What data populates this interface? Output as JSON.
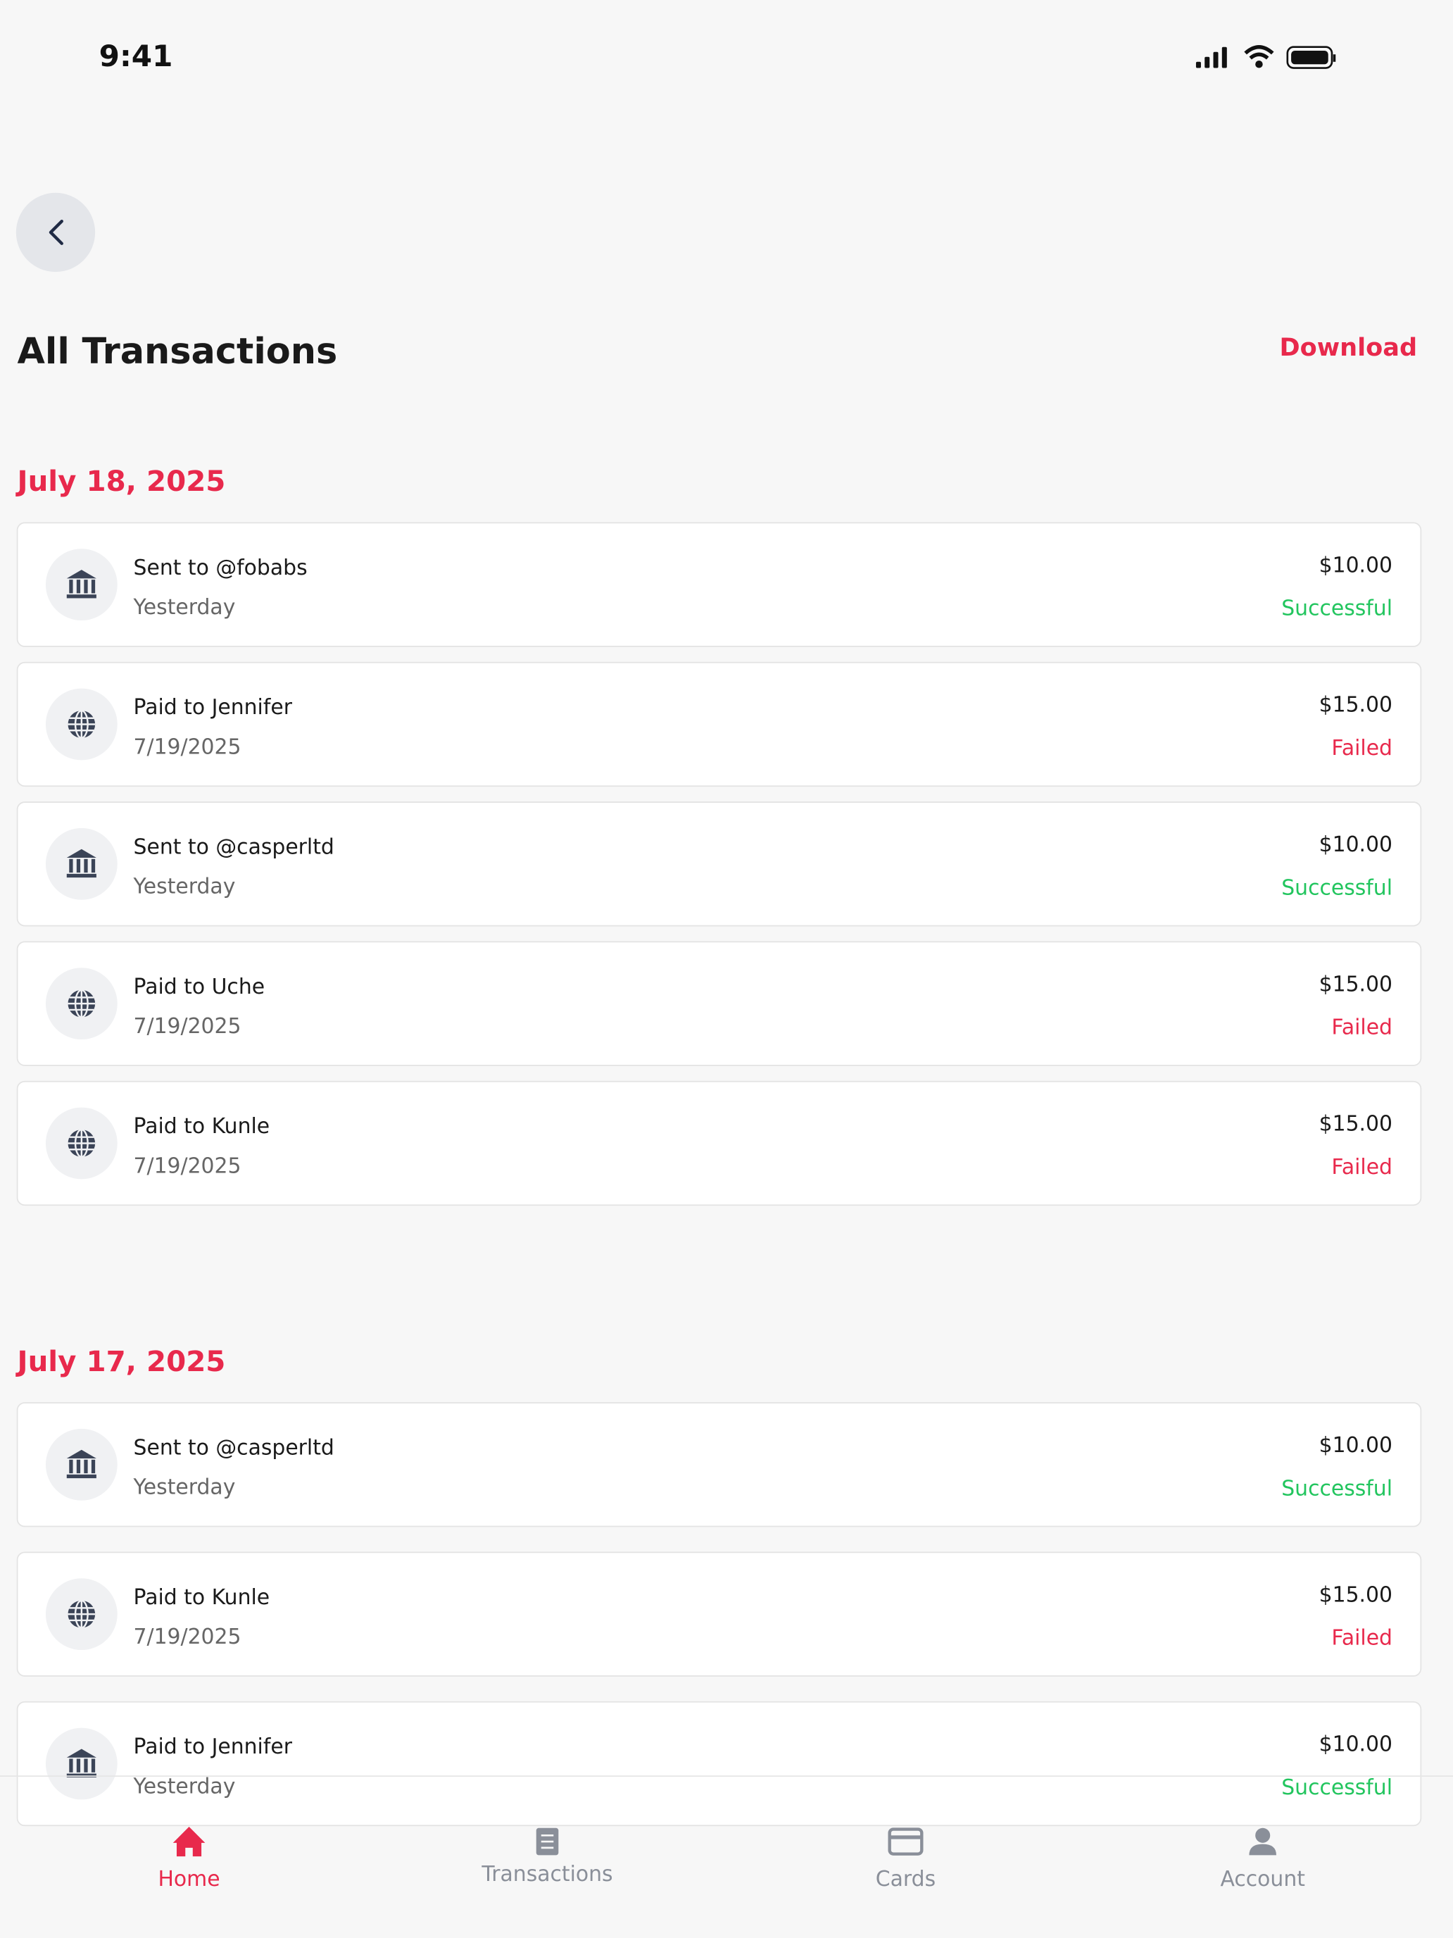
{
  "status_bar": {
    "time": "9:41"
  },
  "header": {
    "title": "All Transactions",
    "action": "Download"
  },
  "sections": [
    {
      "date": "July 18, 2025",
      "transactions": [
        {
          "title": "Sent to @fobabs",
          "subtitle": "Yesterday",
          "amount": "$10.00",
          "status": "Successful",
          "color": "#22c55e",
          "icon": "bank"
        },
        {
          "title": "Paid to Jennifer",
          "subtitle": "7/19/2025",
          "amount": "$15.00",
          "status": "Failed",
          "color": "#e8294c",
          "icon": "globe"
        },
        {
          "title": "Sent to @casperltd",
          "subtitle": "Yesterday",
          "amount": "$10.00",
          "status": "Successful",
          "color": "#22c55e",
          "icon": "bank"
        },
        {
          "title": "Paid to Uche",
          "subtitle": "7/19/2025",
          "amount": "$15.00",
          "status": "Failed",
          "color": "#e8294c",
          "icon": "globe"
        },
        {
          "title": "Paid to Kunle",
          "subtitle": "7/19/2025",
          "amount": "$15.00",
          "status": "Failed",
          "color": "#e8294c",
          "icon": "globe"
        }
      ]
    },
    {
      "date": "July 17, 2025",
      "transactions": [
        {
          "title": "Sent to @casperltd",
          "subtitle": "Yesterday",
          "amount": "$10.00",
          "status": "Successful",
          "color": "#22c55e",
          "icon": "bank"
        },
        {
          "title": "Paid to Kunle",
          "subtitle": "7/19/2025",
          "amount": "$15.00",
          "status": "Failed",
          "color": "#e8294c",
          "icon": "globe"
        },
        {
          "title": "Paid to Jennifer",
          "subtitle": "Yesterday",
          "amount": "$10.00",
          "status": "Successful",
          "color": "#22c55e",
          "icon": "bank"
        }
      ]
    }
  ],
  "tab_bar": [
    {
      "label": "Home",
      "icon": "home",
      "active": true
    },
    {
      "label": "Transactions",
      "icon": "receipt",
      "active": false
    },
    {
      "label": "Cards",
      "icon": "card",
      "active": false
    },
    {
      "label": "Account",
      "icon": "user",
      "active": false
    }
  ]
}
